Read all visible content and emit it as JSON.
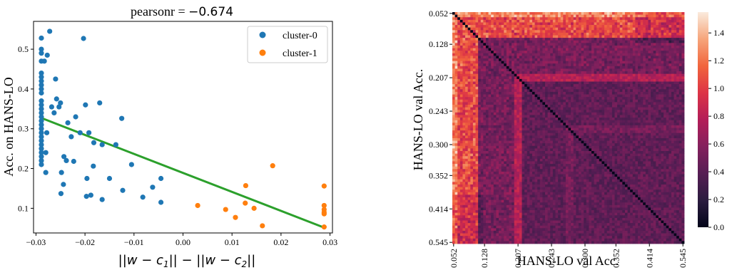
{
  "chart_data": [
    {
      "type": "scatter",
      "title_prefix": "pearsonr = ",
      "title_value": "−0.674",
      "xlabel": "||w − c1|| − ||w − c2||",
      "ylabel": "Acc. on HANS-LO",
      "xlim": [
        -0.0305,
        0.0305
      ],
      "ylim": [
        0.038,
        0.57
      ],
      "xticks": [
        -0.03,
        -0.02,
        -0.01,
        0.0,
        0.01,
        0.02,
        0.03
      ],
      "xtick_labels": [
        "−0.03",
        "−0.02",
        "−0.01",
        "0.00",
        "0.01",
        "0.02",
        "0.03"
      ],
      "yticks": [
        0.1,
        0.2,
        0.3,
        0.4,
        0.5
      ],
      "ytick_labels": [
        "0.1",
        "0.2",
        "0.3",
        "0.4",
        "0.5"
      ],
      "grid": false,
      "legend_position": "top-right",
      "series": [
        {
          "name": "cluster-0",
          "color": "#1f77b4",
          "points": [
            [
              -0.0289,
              0.528
            ],
            [
              -0.0289,
              0.5
            ],
            [
              -0.0289,
              0.49
            ],
            [
              -0.0289,
              0.47
            ],
            [
              -0.0289,
              0.44
            ],
            [
              -0.0289,
              0.43
            ],
            [
              -0.0289,
              0.42
            ],
            [
              -0.0289,
              0.41
            ],
            [
              -0.0289,
              0.4
            ],
            [
              -0.0289,
              0.39
            ],
            [
              -0.0289,
              0.37
            ],
            [
              -0.0289,
              0.36
            ],
            [
              -0.0289,
              0.35
            ],
            [
              -0.0289,
              0.34
            ],
            [
              -0.0289,
              0.33
            ],
            [
              -0.0289,
              0.32
            ],
            [
              -0.0289,
              0.31
            ],
            [
              -0.0289,
              0.3
            ],
            [
              -0.0289,
              0.29
            ],
            [
              -0.0289,
              0.28
            ],
            [
              -0.0289,
              0.27
            ],
            [
              -0.0289,
              0.26
            ],
            [
              -0.0289,
              0.25
            ],
            [
              -0.0289,
              0.24
            ],
            [
              -0.0289,
              0.23
            ],
            [
              -0.0289,
              0.22
            ],
            [
              -0.0289,
              0.21
            ],
            [
              -0.0283,
              0.47
            ],
            [
              -0.028,
              0.24
            ],
            [
              -0.028,
              0.19
            ],
            [
              -0.0278,
              0.29
            ],
            [
              -0.0277,
              0.485
            ],
            [
              -0.0272,
              0.545
            ],
            [
              -0.0268,
              0.355
            ],
            [
              -0.0263,
              0.34
            ],
            [
              -0.026,
              0.425
            ],
            [
              -0.0258,
              0.375
            ],
            [
              -0.0253,
              0.355
            ],
            [
              -0.025,
              0.365
            ],
            [
              -0.0249,
              0.137
            ],
            [
              -0.0248,
              0.19
            ],
            [
              -0.0244,
              0.16
            ],
            [
              -0.0243,
              0.23
            ],
            [
              -0.0238,
              0.22
            ],
            [
              -0.0235,
              0.315
            ],
            [
              -0.0228,
              0.28
            ],
            [
              -0.0223,
              0.218
            ],
            [
              -0.0219,
              0.33
            ],
            [
              -0.021,
              0.29
            ],
            [
              -0.0203,
              0.527
            ],
            [
              -0.0199,
              0.36
            ],
            [
              -0.0197,
              0.13
            ],
            [
              -0.0196,
              0.175
            ],
            [
              -0.0192,
              0.29
            ],
            [
              -0.0188,
              0.133
            ],
            [
              -0.0183,
              0.206
            ],
            [
              -0.0182,
              0.265
            ],
            [
              -0.017,
              0.365
            ],
            [
              -0.0165,
              0.26
            ],
            [
              -0.0165,
              0.122
            ],
            [
              -0.015,
              0.175
            ],
            [
              -0.0137,
              0.26
            ],
            [
              -0.0125,
              0.326
            ],
            [
              -0.0123,
              0.145
            ],
            [
              -0.0105,
              0.21
            ],
            [
              -0.0082,
              0.128
            ],
            [
              -0.0062,
              0.153
            ],
            [
              -0.0045,
              0.175
            ],
            [
              -0.0045,
              0.115
            ]
          ]
        },
        {
          "name": "cluster-1",
          "color": "#ff7f0e",
          "points": [
            [
              0.003,
              0.107
            ],
            [
              0.0087,
              0.097
            ],
            [
              0.0107,
              0.077
            ],
            [
              0.0127,
              0.113
            ],
            [
              0.0128,
              0.157
            ],
            [
              0.0145,
              0.1
            ],
            [
              0.0162,
              0.056
            ],
            [
              0.0183,
              0.207
            ],
            [
              0.0288,
              0.156
            ],
            [
              0.0288,
              0.107
            ],
            [
              0.0288,
              0.097
            ],
            [
              0.0288,
              0.09
            ],
            [
              0.0288,
              0.086
            ],
            [
              0.0288,
              0.053
            ]
          ]
        }
      ],
      "fit_line": {
        "color": "#2ca02c",
        "from": [
          -0.0289,
          0.327
        ],
        "to": [
          0.0289,
          0.051
        ]
      }
    },
    {
      "type": "heatmap",
      "xlabel": "HANS-LO val Acc.",
      "ylabel": "HANS-LO val Acc.",
      "tick_labels": [
        "0.052",
        "0.128",
        "0.207",
        "0.243",
        "0.300",
        "0.352",
        "0.414",
        "0.545"
      ],
      "tick_positions": [
        0,
        12,
        25,
        38,
        51,
        63,
        76,
        89
      ],
      "n": 90,
      "colorbar": {
        "vmin": 0.0,
        "vmax": 1.55,
        "ticks": [
          0.0,
          0.2,
          0.4,
          0.6,
          0.8,
          1.0,
          1.2,
          1.4
        ],
        "tick_labels": [
          "0.0",
          "0.2",
          "0.4",
          "0.6",
          "0.8",
          "1.0",
          "1.2",
          "1.4"
        ],
        "colormap": "rocket"
      }
    }
  ]
}
